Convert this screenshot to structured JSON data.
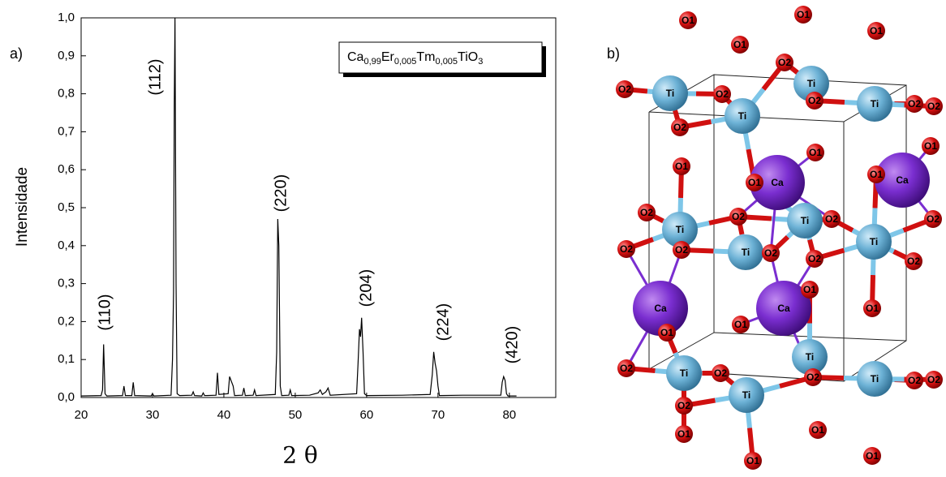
{
  "panel_a": "a)",
  "panel_b": "b)",
  "chart_data": {
    "type": "line",
    "xlabel": "2 θ",
    "ylabel": "Intensidade",
    "xlim": [
      20,
      86.5
    ],
    "ylim": [
      0,
      1.0
    ],
    "xticks": [
      20,
      30,
      40,
      50,
      60,
      70,
      80
    ],
    "yticks": [
      {
        "value": 0,
        "label": "0,0"
      },
      {
        "value": 0.1,
        "label": "0,1"
      },
      {
        "value": 0.2,
        "label": "0,2"
      },
      {
        "value": 0.3,
        "label": "0,3"
      },
      {
        "value": 0.4,
        "label": "0,4"
      },
      {
        "value": 0.5,
        "label": "0,5"
      },
      {
        "value": 0.6,
        "label": "0,6"
      },
      {
        "value": 0.7,
        "label": "0,7"
      },
      {
        "value": 0.8,
        "label": "0,8"
      },
      {
        "value": 0.9,
        "label": "0,9"
      },
      {
        "value": 1.0,
        "label": "1,0"
      }
    ],
    "annotations": [
      "(110)",
      "(112)",
      "(220)",
      "(204)",
      "(224)",
      "(420)"
    ],
    "x": [
      20,
      22.8,
      23.0,
      23.15,
      23.35,
      23.6,
      25.8,
      26.0,
      26.2,
      27.1,
      27.3,
      27.5,
      29.8,
      30.0,
      30.2,
      32.6,
      32.8,
      32.95,
      33.05,
      33.15,
      33.3,
      33.45,
      33.8,
      35.5,
      35.7,
      35.9,
      36.9,
      37.1,
      37.3,
      38.9,
      39.1,
      39.3,
      40.6,
      40.8,
      41.0,
      41.3,
      41.5,
      42.6,
      42.8,
      43.0,
      44.1,
      44.3,
      44.5,
      47.2,
      47.4,
      47.55,
      47.7,
      47.9,
      48.1,
      49.1,
      49.3,
      49.5,
      52.0,
      53.2,
      53.5,
      53.8,
      54.3,
      54.6,
      54.9,
      58.6,
      58.8,
      59.0,
      59.15,
      59.3,
      59.5,
      59.7,
      60.0,
      65.0,
      68.9,
      69.2,
      69.4,
      69.6,
      69.8,
      70.0,
      70.2,
      73.5,
      78.8,
      79.0,
      79.2,
      79.4,
      79.6,
      79.8,
      81.0
    ],
    "series": [
      {
        "name": "Ca0,99Er0,005Tm0,005TiO3",
        "color": "#000000",
        "values": [
          0.004,
          0.005,
          0.02,
          0.14,
          0.01,
          0.004,
          0.005,
          0.03,
          0.005,
          0.005,
          0.04,
          0.005,
          0.004,
          0.01,
          0.004,
          0.006,
          0.1,
          0.28,
          0.77,
          1.0,
          0.3,
          0.01,
          0.005,
          0.006,
          0.015,
          0.005,
          0.004,
          0.012,
          0.005,
          0.006,
          0.065,
          0.008,
          0.01,
          0.055,
          0.045,
          0.03,
          0.005,
          0.006,
          0.025,
          0.005,
          0.006,
          0.02,
          0.005,
          0.008,
          0.12,
          0.47,
          0.4,
          0.03,
          0.005,
          0.006,
          0.02,
          0.005,
          0.006,
          0.012,
          0.02,
          0.008,
          0.015,
          0.025,
          0.006,
          0.01,
          0.09,
          0.18,
          0.16,
          0.21,
          0.12,
          0.01,
          0.005,
          0.006,
          0.008,
          0.06,
          0.12,
          0.09,
          0.07,
          0.03,
          0.005,
          0.006,
          0.006,
          0.04,
          0.055,
          0.045,
          0.01,
          0.004,
          0.004
        ]
      }
    ]
  },
  "structure": {
    "atoms": [
      {
        "label": "Ti"
      },
      {
        "label": "Ti"
      },
      {
        "label": "Ti"
      },
      {
        "label": "Ti"
      },
      {
        "label": "Ti"
      },
      {
        "label": "Ti"
      },
      {
        "label": "Ti"
      },
      {
        "label": "Ti"
      },
      {
        "label": "Ti"
      },
      {
        "label": "Ti"
      },
      {
        "label": "Ti"
      },
      {
        "label": "Ti"
      },
      {
        "label": "Ca"
      },
      {
        "label": "Ca"
      },
      {
        "label": "Ca"
      },
      {
        "label": "Ca"
      },
      {
        "label": "O1"
      },
      {
        "label": "O1"
      },
      {
        "label": "O1"
      },
      {
        "label": "O1"
      },
      {
        "label": "O1"
      },
      {
        "label": "O1"
      },
      {
        "label": "O1"
      },
      {
        "label": "O1"
      },
      {
        "label": "O1"
      },
      {
        "label": "O1"
      },
      {
        "label": "O1"
      },
      {
        "label": "O1"
      },
      {
        "label": "O1"
      },
      {
        "label": "O1"
      },
      {
        "label": "O1"
      },
      {
        "label": "O1"
      },
      {
        "label": "O1"
      },
      {
        "label": "O2"
      },
      {
        "label": "O2"
      },
      {
        "label": "O2"
      },
      {
        "label": "O2"
      },
      {
        "label": "O2"
      },
      {
        "label": "O2"
      },
      {
        "label": "O2"
      },
      {
        "label": "O2"
      },
      {
        "label": "O2"
      },
      {
        "label": "O2"
      },
      {
        "label": "O2"
      },
      {
        "label": "O2"
      },
      {
        "label": "O2"
      },
      {
        "label": "O2"
      },
      {
        "label": "O2"
      },
      {
        "label": "O2"
      },
      {
        "label": "O2"
      },
      {
        "label": "O2"
      },
      {
        "label": "O2"
      },
      {
        "label": "O2"
      },
      {
        "label": "O2"
      },
      {
        "label": "O2"
      }
    ]
  }
}
